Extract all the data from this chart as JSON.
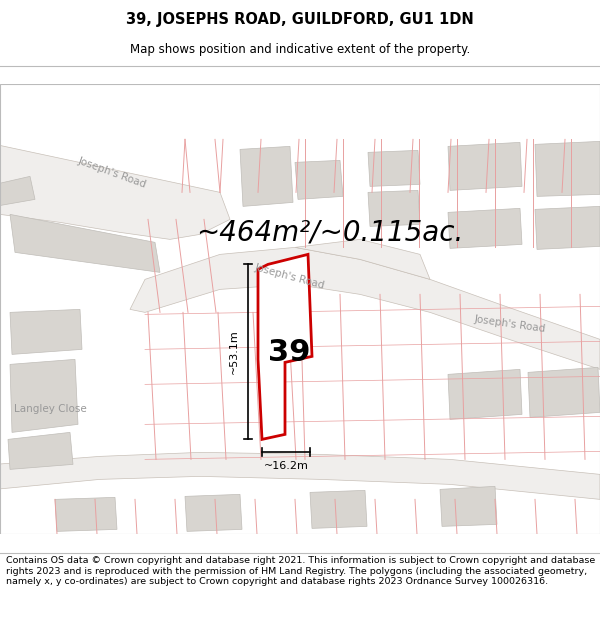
{
  "title": "39, JOSEPHS ROAD, GUILDFORD, GU1 1DN",
  "subtitle": "Map shows position and indicative extent of the property.",
  "area_text": "~464m²/~0.115ac.",
  "width_label": "~16.2m",
  "height_label": "~53.1m",
  "number_label": "39",
  "footer_text": "Contains OS data © Crown copyright and database right 2021. This information is subject to Crown copyright and database rights 2023 and is reproduced with the permission of HM Land Registry. The polygons (including the associated geometry, namely x, y co-ordinates) are subject to Crown copyright and database rights 2023 Ordnance Survey 100026316.",
  "map_bg": "#ffffff",
  "road_fill": "#f0eeec",
  "road_edge": "#c8c0b8",
  "parcel_line": "#e8a0a0",
  "building_fill": "#d8d5d0",
  "building_edge": "#c0bdb8",
  "highlight_red": "#cc0000",
  "prop_fill": "#ffffff",
  "label_gray": "#999999",
  "title_fontsize": 10.5,
  "subtitle_fontsize": 8.5,
  "footer_fontsize": 6.8,
  "area_fontsize": 20,
  "number_fontsize": 22,
  "dim_fontsize": 8,
  "road_label_fontsize": 7.5
}
